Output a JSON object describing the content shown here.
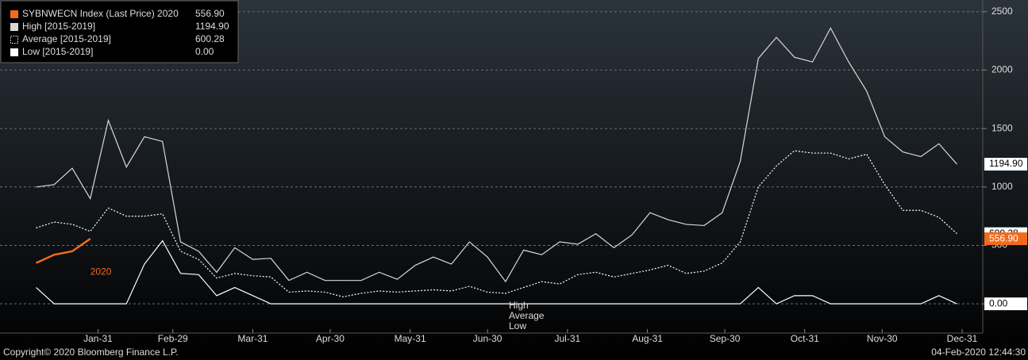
{
  "chart_data": {
    "type": "line",
    "x": [
      7,
      14,
      21,
      28,
      35,
      42,
      49,
      56,
      63,
      70,
      77,
      84,
      91,
      98,
      105,
      112,
      119,
      126,
      133,
      140,
      147,
      154,
      161,
      168,
      175,
      182,
      189,
      196,
      203,
      210,
      217,
      224,
      231,
      238,
      245,
      252,
      259,
      266,
      273,
      280,
      287,
      294,
      301,
      308,
      315,
      322,
      329,
      336,
      343,
      350,
      357,
      364
    ],
    "xlim": [
      -7,
      374
    ],
    "xticks": [
      {
        "value": 31,
        "label": "Jan-31"
      },
      {
        "value": 60,
        "label": "Feb-29"
      },
      {
        "value": 91,
        "label": "Mar-31"
      },
      {
        "value": 121,
        "label": "Apr-30"
      },
      {
        "value": 152,
        "label": "May-31"
      },
      {
        "value": 182,
        "label": "Jun-30"
      },
      {
        "value": 213,
        "label": "Jul-31"
      },
      {
        "value": 244,
        "label": "Aug-31"
      },
      {
        "value": 274,
        "label": "Sep-30"
      },
      {
        "value": 305,
        "label": "Oct-31"
      },
      {
        "value": 335,
        "label": "Nov-30"
      },
      {
        "value": 366,
        "label": "Dec-31"
      }
    ],
    "ylim": [
      -250,
      2600
    ],
    "yticks": [
      0,
      500,
      1000,
      1500,
      2000,
      2500
    ],
    "grid": true,
    "series": [
      {
        "name": "SYBNWECN Index (Last Price) 2020",
        "color": "#f26b1d",
        "style": "solid-fill",
        "last_label": "556.90",
        "values": [
          350,
          420,
          450,
          556.9,
          null,
          null,
          null,
          null,
          null,
          null,
          null,
          null,
          null,
          null,
          null,
          null,
          null,
          null,
          null,
          null,
          null,
          null,
          null,
          null,
          null,
          null,
          null,
          null,
          null,
          null,
          null,
          null,
          null,
          null,
          null,
          null,
          null,
          null,
          null,
          null,
          null,
          null,
          null,
          null,
          null,
          null,
          null,
          null,
          null,
          null,
          null,
          null
        ]
      },
      {
        "name": "High [2015-2019]",
        "color": "#d8d8d8",
        "style": "solid",
        "last_label": "1194.90",
        "values": [
          1000,
          1020,
          1160,
          900,
          1570,
          1170,
          1430,
          1390,
          530,
          450,
          270,
          480,
          380,
          390,
          200,
          270,
          200,
          200,
          200,
          270,
          210,
          330,
          400,
          340,
          530,
          400,
          190,
          460,
          420,
          530,
          510,
          600,
          480,
          590,
          780,
          720,
          680,
          670,
          780,
          1220,
          2100,
          2280,
          2110,
          2070,
          2360,
          2070,
          1820,
          1430,
          1300,
          1260,
          1370,
          1194.9
        ]
      },
      {
        "name": "Average [2015-2019]",
        "color": "#ffffff",
        "style": "dotted",
        "last_label": "600.28",
        "values": [
          650,
          700,
          680,
          620,
          820,
          750,
          750,
          770,
          450,
          380,
          220,
          260,
          240,
          230,
          100,
          110,
          100,
          60,
          90,
          110,
          100,
          110,
          120,
          110,
          150,
          100,
          90,
          140,
          190,
          170,
          250,
          270,
          230,
          260,
          290,
          330,
          260,
          280,
          350,
          530,
          1000,
          1180,
          1310,
          1290,
          1290,
          1240,
          1280,
          1020,
          800,
          800,
          740,
          600.28
        ]
      },
      {
        "name": "Low [2015-2019]",
        "color": "#ffffff",
        "style": "solid",
        "last_label": "0.00",
        "values": [
          140,
          0,
          0,
          0,
          0,
          0,
          340,
          540,
          260,
          250,
          70,
          140,
          70,
          0,
          0,
          0,
          0,
          0,
          0,
          0,
          0,
          0,
          0,
          0,
          0,
          0,
          0,
          0,
          0,
          0,
          0,
          0,
          0,
          0,
          0,
          0,
          0,
          0,
          0,
          0,
          140,
          0,
          70,
          70,
          0,
          0,
          0,
          0,
          0,
          0,
          70,
          0
        ]
      }
    ],
    "annotations": [
      {
        "text": "2020",
        "x": 28,
        "y": 270,
        "color": "#f26b1d"
      }
    ],
    "overlay_labels": [
      "High",
      "Average",
      "Low"
    ],
    "footer_left": "Copyright© 2020 Bloomberg Finance L.P.",
    "footer_right": "04-Feb-2020 12:44:30"
  }
}
